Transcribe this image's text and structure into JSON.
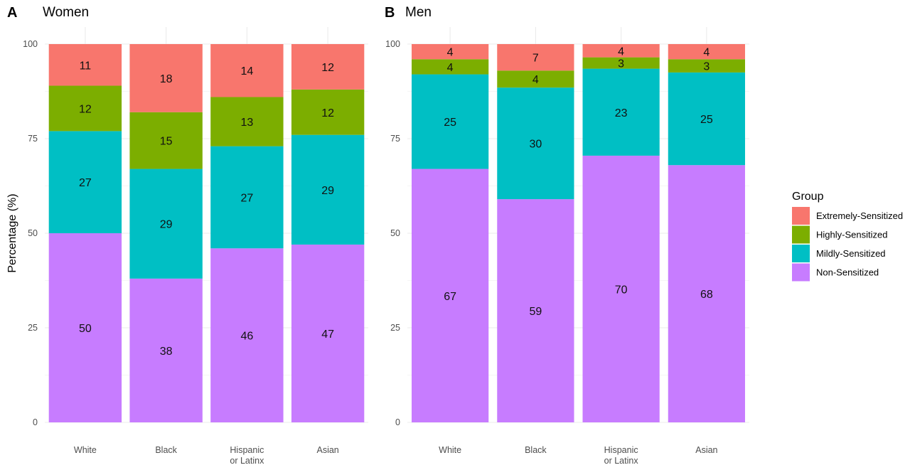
{
  "chart_data": [
    {
      "type": "bar",
      "stacked": true,
      "panel_tag": "A",
      "title": "Women",
      "ylabel": "Percentage (%)",
      "ylim": [
        0,
        100
      ],
      "yticks": [
        "0",
        "25",
        "50",
        "75",
        "100"
      ],
      "categories": [
        "White",
        "Black",
        "Hispanic or Latinx",
        "Asian"
      ],
      "category_lines": [
        [
          "White"
        ],
        [
          "Black"
        ],
        [
          "Hispanic",
          "or Latinx"
        ],
        [
          "Asian"
        ]
      ],
      "series": [
        {
          "name": "Non-Sensitized",
          "values": [
            50,
            38,
            46,
            47
          ],
          "labels": [
            "50",
            "38",
            "46",
            "47"
          ]
        },
        {
          "name": "Mildly-Sensitized",
          "values": [
            27,
            29,
            27,
            29
          ],
          "labels": [
            "27",
            "29",
            "27",
            "29"
          ]
        },
        {
          "name": "Highly-Sensitized",
          "values": [
            12,
            15,
            13,
            12
          ],
          "labels": [
            "12",
            "15",
            "13",
            "12"
          ]
        },
        {
          "name": "Extremely-Sensitized",
          "values": [
            11,
            18,
            14,
            12
          ],
          "labels": [
            "11",
            "18",
            "14",
            "12"
          ]
        }
      ]
    },
    {
      "type": "bar",
      "stacked": true,
      "panel_tag": "B",
      "title": "Men",
      "ylabel": "",
      "ylim": [
        0,
        100
      ],
      "yticks": [
        "0",
        "25",
        "50",
        "75",
        "100"
      ],
      "categories": [
        "White",
        "Black",
        "Hispanic or Latinx",
        "Asian"
      ],
      "category_lines": [
        [
          "White"
        ],
        [
          "Black"
        ],
        [
          "Hispanic",
          "or Latinx"
        ],
        [
          "Asian"
        ]
      ],
      "series": [
        {
          "name": "Non-Sensitized",
          "values": [
            67,
            59,
            70.5,
            68
          ],
          "labels": [
            "67",
            "59",
            "70",
            "68"
          ]
        },
        {
          "name": "Mildly-Sensitized",
          "values": [
            25,
            29.5,
            23,
            24.5
          ],
          "labels": [
            "25",
            "30",
            "23",
            "25"
          ]
        },
        {
          "name": "Highly-Sensitized",
          "values": [
            4,
            4.5,
            3,
            3.5
          ],
          "labels": [
            "4",
            "4",
            "3",
            "3"
          ]
        },
        {
          "name": "Extremely-Sensitized",
          "values": [
            4,
            7,
            3.5,
            4
          ],
          "labels": [
            "4",
            "7",
            "4",
            "4"
          ]
        }
      ]
    }
  ],
  "legend": {
    "title": "Group",
    "position": "right",
    "items": [
      {
        "label": "Extremely-Sensitized",
        "color": "#F8766D"
      },
      {
        "label": "Highly-Sensitized",
        "color": "#7CAE00"
      },
      {
        "label": "Mildly-Sensitized",
        "color": "#00BFC4"
      },
      {
        "label": "Non-Sensitized",
        "color": "#C77CFF"
      }
    ]
  },
  "colors": {
    "Extremely-Sensitized": "#F8766D",
    "Highly-Sensitized": "#7CAE00",
    "Mildly-Sensitized": "#00BFC4",
    "Non-Sensitized": "#C77CFF",
    "grid": "#ebebeb"
  }
}
